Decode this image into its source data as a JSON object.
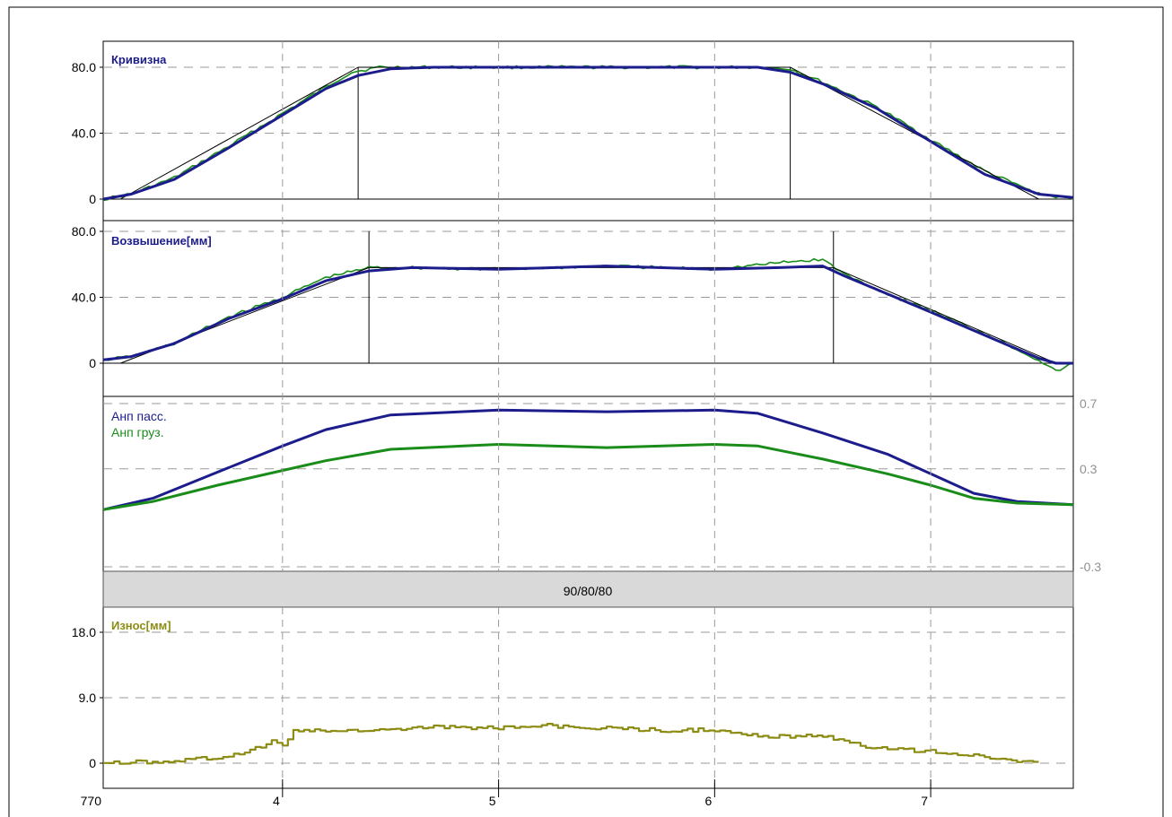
{
  "colors": {
    "blue": "#1c1c8c",
    "green": "#1a8c1a",
    "olive": "#8c8c14",
    "band": "#d9d9d9",
    "grid": "#9a9a9a",
    "axis_text_light": "#909090"
  },
  "x_axis": {
    "start_label": "770",
    "ticks": [
      {
        "value": 4,
        "label": "4"
      },
      {
        "value": 5,
        "label": "5"
      },
      {
        "value": 6,
        "label": "6"
      },
      {
        "value": 7,
        "label": "7"
      }
    ]
  },
  "band_label": "90/80/80",
  "chart_data": [
    {
      "id": "curvature",
      "type": "line",
      "title": "Кривизна",
      "title_color": "#1c1c8c",
      "ylim": [
        0,
        80
      ],
      "y_ticks": [
        {
          "value": 80,
          "label": "80.0"
        },
        {
          "value": 40,
          "label": "40.0"
        },
        {
          "value": 0,
          "label": "0"
        }
      ],
      "y_tick_side": "left",
      "series": [
        {
          "color": "#1a8c1a",
          "style": "noisy",
          "x": [
            3.17,
            3.3,
            3.5,
            3.75,
            4.0,
            4.2,
            4.32,
            4.45,
            4.7,
            5.0,
            5.5,
            6.0,
            6.2,
            6.35,
            6.5,
            6.75,
            7.0,
            7.25,
            7.5,
            7.66
          ],
          "y": [
            0,
            3,
            13,
            32,
            52,
            68,
            77,
            80,
            80,
            80,
            80,
            80,
            80,
            79,
            71,
            56,
            36,
            17,
            3,
            0
          ]
        },
        {
          "color": "#000000",
          "style": "thin",
          "x": [
            3.25,
            4.35,
            6.35,
            7.5
          ],
          "y": [
            0,
            80,
            80,
            0
          ]
        },
        {
          "color": "#1c1c8c",
          "style": "thick",
          "x": [
            3.17,
            3.3,
            3.5,
            3.75,
            4.0,
            4.2,
            4.35,
            4.5,
            4.7,
            5.0,
            5.5,
            6.0,
            6.2,
            6.35,
            6.5,
            6.75,
            7.0,
            7.25,
            7.5,
            7.66
          ],
          "y": [
            0,
            3,
            12,
            31,
            51,
            67,
            75,
            79,
            80,
            80,
            80,
            80,
            80,
            77,
            70,
            55,
            35,
            15,
            3,
            1
          ]
        }
      ],
      "markers": [
        4.35,
        6.35
      ]
    },
    {
      "id": "elevation",
      "type": "line",
      "title": "Возвышение[мм]",
      "title_color": "#1c1c8c",
      "ylim": [
        0,
        80
      ],
      "y_ticks": [
        {
          "value": 80,
          "label": "80.0"
        },
        {
          "value": 40,
          "label": "40.0"
        },
        {
          "value": 0,
          "label": "0"
        }
      ],
      "y_tick_side": "left",
      "series": [
        {
          "color": "#1a8c1a",
          "style": "noisy",
          "x": [
            3.17,
            3.3,
            3.5,
            3.75,
            4.0,
            4.2,
            4.4,
            4.6,
            5.0,
            5.5,
            6.0,
            6.3,
            6.5,
            6.6,
            6.8,
            7.0,
            7.25,
            7.5,
            7.58,
            7.66
          ],
          "y": [
            2,
            4,
            12,
            28,
            40,
            52,
            58,
            58,
            57,
            59,
            57,
            61,
            63,
            54,
            42,
            32,
            18,
            2,
            -5,
            0
          ]
        },
        {
          "color": "#000000",
          "style": "thin",
          "x": [
            3.25,
            4.4,
            6.55,
            7.58
          ],
          "y": [
            0,
            58,
            58,
            0
          ]
        },
        {
          "color": "#1c1c8c",
          "style": "thick",
          "x": [
            3.17,
            3.3,
            3.5,
            3.75,
            4.0,
            4.2,
            4.4,
            4.6,
            5.0,
            5.5,
            6.0,
            6.3,
            6.5,
            6.6,
            6.8,
            7.0,
            7.25,
            7.5,
            7.58,
            7.66
          ],
          "y": [
            2,
            4,
            12,
            27,
            39,
            50,
            56,
            58,
            57,
            59,
            57,
            58,
            59,
            53,
            42,
            31,
            17,
            3,
            0,
            0
          ]
        }
      ],
      "markers": [
        4.4,
        6.55
      ]
    },
    {
      "id": "anp",
      "type": "line",
      "title": "",
      "ylim": [
        -0.3,
        0.7
      ],
      "y_ticks": [
        {
          "value": 0.7,
          "label": "0.7"
        },
        {
          "value": 0.3,
          "label": "0.3"
        },
        {
          "value": -0.3,
          "label": "-0.3"
        }
      ],
      "y_tick_side": "right",
      "series": [
        {
          "name": "Анп пасс.",
          "color": "#1c1c8c",
          "style": "thick",
          "x": [
            3.17,
            3.4,
            3.7,
            4.0,
            4.2,
            4.5,
            5.0,
            5.5,
            6.0,
            6.2,
            6.5,
            6.8,
            7.0,
            7.2,
            7.4,
            7.66
          ],
          "y": [
            0.05,
            0.12,
            0.28,
            0.44,
            0.54,
            0.63,
            0.66,
            0.65,
            0.66,
            0.64,
            0.52,
            0.39,
            0.27,
            0.15,
            0.1,
            0.08
          ]
        },
        {
          "name": "Анп груз.",
          "color": "#1a8c1a",
          "style": "thick",
          "x": [
            3.17,
            3.4,
            3.7,
            4.0,
            4.2,
            4.5,
            5.0,
            5.5,
            6.0,
            6.2,
            6.5,
            6.8,
            7.0,
            7.2,
            7.4,
            7.66
          ],
          "y": [
            0.05,
            0.1,
            0.2,
            0.29,
            0.35,
            0.42,
            0.45,
            0.43,
            0.45,
            0.44,
            0.36,
            0.27,
            0.2,
            0.12,
            0.09,
            0.08
          ]
        }
      ]
    },
    {
      "id": "wear",
      "type": "line",
      "title": "Износ[мм]",
      "title_color": "#8c8c14",
      "ylim": [
        0,
        18
      ],
      "y_ticks": [
        {
          "value": 18,
          "label": "18.0"
        },
        {
          "value": 9,
          "label": "9.0"
        },
        {
          "value": 0,
          "label": "0"
        }
      ],
      "y_tick_side": "left",
      "series": [
        {
          "color": "#8c8c14",
          "style": "step",
          "x": [
            3.17,
            3.5,
            3.75,
            3.9,
            3.95,
            4.0,
            4.05,
            4.1,
            4.3,
            4.5,
            4.7,
            5.0,
            5.2,
            5.5,
            5.8,
            6.0,
            6.2,
            6.5,
            6.7,
            6.9,
            7.1,
            7.3,
            7.5
          ],
          "y": [
            0,
            0.3,
            1,
            2.2,
            3.2,
            2.5,
            4.4,
            4.5,
            4.4,
            4.5,
            5,
            4.8,
            5.2,
            4.8,
            4.5,
            4.6,
            3.7,
            3.7,
            2.3,
            1.8,
            1.4,
            0.7,
            0
          ]
        }
      ]
    }
  ]
}
